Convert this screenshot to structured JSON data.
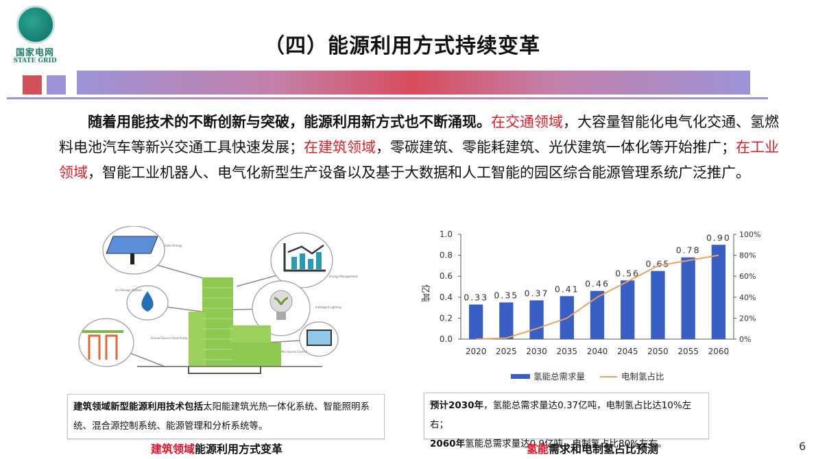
{
  "logo": {
    "cn": "国家电网",
    "en": "STATE GRID"
  },
  "header": {
    "title": "（四）能源利用方式持续变革"
  },
  "paragraph": {
    "bold_lead": "随着用能技术的不断创新与突破，能源利用新方式也不断涌现。",
    "seg1_red": "在交通领域",
    "seg1": "，大容量智能化电气化交通、氢燃料电池汽车等新兴交通工具快速发展；",
    "seg2_red": "在建筑领域",
    "seg2": "，零碳建筑、零能耗建筑、光伏建筑一体化等开始推广；",
    "seg3_red": "在工业领域",
    "seg3": "，智能工业机器人、电气化新型生产设备以及基于大数据和人工智能的园区综合能源管理系统广泛推广。"
  },
  "illustration": {
    "labels": [
      "Solar Energy",
      "Energy Management And Analysis System",
      "Ice Storage System",
      "Intelligent Lighting System",
      "Ground Source Heat Pump System",
      "Mix Source Control System"
    ]
  },
  "left_caption": {
    "bold": "建筑领域新型能源利用技术包括",
    "text": "太阳能建筑光热一体化系统、智能照明系统、混合源控制系统、能源管理和分析系统等。"
  },
  "right_caption": {
    "line1_bold": "预计2030年",
    "line1": "，氢能总需求量达0.37亿吨，电制氢占比达10%左右；",
    "line2_bold": "2060年",
    "line2": "氢能总需求量达0.9亿吨，电制氢占比80%左右。"
  },
  "left_subcaption": {
    "red": "建筑领域",
    "text": "能源利用方式变革"
  },
  "right_subcaption": {
    "red": "氢能",
    "text": "需求和电制氢占比预测"
  },
  "page_number": "6",
  "colors": {
    "bar": "#3a5fc4",
    "line": "#e8a060",
    "accent_red": "#d4202a"
  },
  "chart_data": {
    "type": "bar",
    "categories": [
      "2020",
      "2025",
      "2030",
      "2035",
      "2040",
      "2045",
      "2050",
      "2055",
      "2060"
    ],
    "series": [
      {
        "name": "氢能总需求量",
        "type": "bar",
        "axis": "left",
        "values": [
          0.33,
          0.35,
          0.37,
          0.41,
          0.46,
          0.56,
          0.65,
          0.78,
          0.9
        ]
      },
      {
        "name": "电制氢占比",
        "type": "line",
        "axis": "right",
        "values": [
          0,
          1,
          10,
          20,
          40,
          55,
          70,
          75,
          80
        ]
      }
    ],
    "ylabel": "亿吨",
    "ylim": [
      0,
      1.0
    ],
    "yticks": [
      "0.0",
      "0.2",
      "0.4",
      "0.6",
      "0.8",
      "1.0"
    ],
    "y2lim": [
      0,
      100
    ],
    "y2ticks": [
      "0%",
      "20%",
      "40%",
      "60%",
      "80%",
      "100%"
    ],
    "legend_position": "bottom",
    "grid": false
  }
}
